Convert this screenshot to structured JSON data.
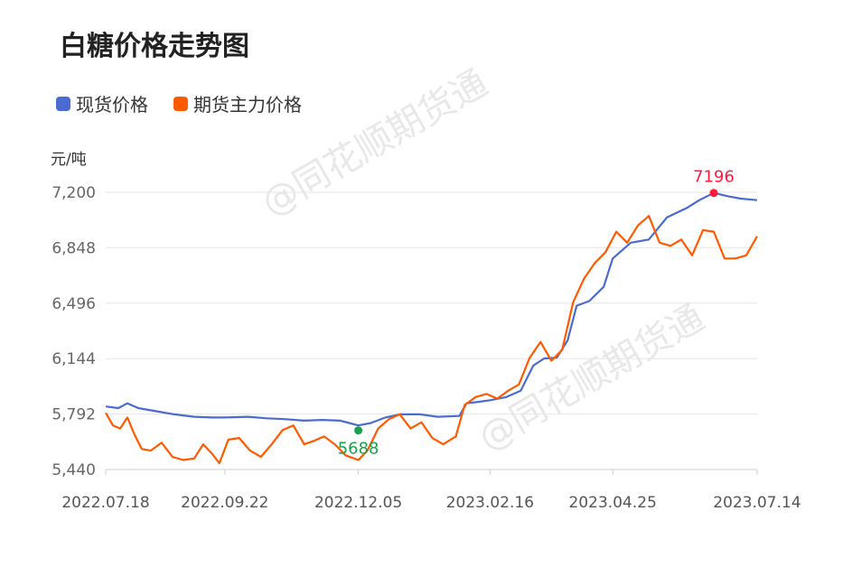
{
  "chart_data": {
    "type": "line",
    "title": "白糖价格走势图",
    "ylabel": "元/吨",
    "xlabel": "",
    "ylim": [
      5440,
      7200
    ],
    "y_ticks": [
      "7,200",
      "6,848",
      "6,496",
      "6,144",
      "5,792",
      "5,440"
    ],
    "y_tick_values": [
      7200,
      6848,
      6496,
      6144,
      5792,
      5440
    ],
    "x_ticks": [
      "2022.07.18",
      "2022.09.22",
      "2022.12.05",
      "2023.02.16",
      "2023.04.25",
      "2023.07.14"
    ],
    "x_tick_dates": [
      "2022-07-18",
      "2022-09-22",
      "2022-12-05",
      "2023-02-16",
      "2023-04-25",
      "2023-07-14"
    ],
    "grid": true,
    "legend_position": "top-left",
    "series": [
      {
        "name": "现货价格",
        "color": "#4a6bd0",
        "points": [
          [
            "2022-07-18",
            5840
          ],
          [
            "2022-07-25",
            5830
          ],
          [
            "2022-07-30",
            5860
          ],
          [
            "2022-08-05",
            5830
          ],
          [
            "2022-08-15",
            5810
          ],
          [
            "2022-08-25",
            5790
          ],
          [
            "2022-09-05",
            5775
          ],
          [
            "2022-09-15",
            5770
          ],
          [
            "2022-09-22",
            5770
          ],
          [
            "2022-10-05",
            5775
          ],
          [
            "2022-10-15",
            5765
          ],
          [
            "2022-10-25",
            5760
          ],
          [
            "2022-11-05",
            5750
          ],
          [
            "2022-11-15",
            5755
          ],
          [
            "2022-11-25",
            5750
          ],
          [
            "2022-12-05",
            5720
          ],
          [
            "2022-12-12",
            5735
          ],
          [
            "2022-12-20",
            5770
          ],
          [
            "2022-12-28",
            5790
          ],
          [
            "2023-01-08",
            5790
          ],
          [
            "2023-01-18",
            5775
          ],
          [
            "2023-01-30",
            5780
          ],
          [
            "2023-02-03",
            5860
          ],
          [
            "2023-02-10",
            5870
          ],
          [
            "2023-02-16",
            5880
          ],
          [
            "2023-02-25",
            5900
          ],
          [
            "2023-03-05",
            5940
          ],
          [
            "2023-03-12",
            6100
          ],
          [
            "2023-03-18",
            6145
          ],
          [
            "2023-03-25",
            6150
          ],
          [
            "2023-03-31",
            6260
          ],
          [
            "2023-04-05",
            6480
          ],
          [
            "2023-04-12",
            6510
          ],
          [
            "2023-04-20",
            6600
          ],
          [
            "2023-04-25",
            6780
          ],
          [
            "2023-05-05",
            6880
          ],
          [
            "2023-05-15",
            6900
          ],
          [
            "2023-05-25",
            7040
          ],
          [
            "2023-06-05",
            7100
          ],
          [
            "2023-06-12",
            7150
          ],
          [
            "2023-06-20",
            7196
          ],
          [
            "2023-06-28",
            7175
          ],
          [
            "2023-07-05",
            7160
          ],
          [
            "2023-07-14",
            7150
          ]
        ]
      },
      {
        "name": "期货主力价格",
        "color": "#ff5a00",
        "points": [
          [
            "2022-07-18",
            5800
          ],
          [
            "2022-07-22",
            5720
          ],
          [
            "2022-07-26",
            5700
          ],
          [
            "2022-07-30",
            5770
          ],
          [
            "2022-08-03",
            5660
          ],
          [
            "2022-08-07",
            5570
          ],
          [
            "2022-08-12",
            5560
          ],
          [
            "2022-08-18",
            5610
          ],
          [
            "2022-08-24",
            5520
          ],
          [
            "2022-08-30",
            5500
          ],
          [
            "2022-09-05",
            5510
          ],
          [
            "2022-09-10",
            5600
          ],
          [
            "2022-09-15",
            5540
          ],
          [
            "2022-09-19",
            5480
          ],
          [
            "2022-09-24",
            5630
          ],
          [
            "2022-09-30",
            5640
          ],
          [
            "2022-10-06",
            5560
          ],
          [
            "2022-10-12",
            5520
          ],
          [
            "2022-10-18",
            5600
          ],
          [
            "2022-10-24",
            5690
          ],
          [
            "2022-10-30",
            5720
          ],
          [
            "2022-11-05",
            5600
          ],
          [
            "2022-11-10",
            5620
          ],
          [
            "2022-11-16",
            5650
          ],
          [
            "2022-11-22",
            5600
          ],
          [
            "2022-11-28",
            5530
          ],
          [
            "2022-12-05",
            5500
          ],
          [
            "2022-12-10",
            5560
          ],
          [
            "2022-12-16",
            5700
          ],
          [
            "2022-12-22",
            5760
          ],
          [
            "2022-12-28",
            5790
          ],
          [
            "2023-01-03",
            5700
          ],
          [
            "2023-01-09",
            5740
          ],
          [
            "2023-01-15",
            5640
          ],
          [
            "2023-01-21",
            5600
          ],
          [
            "2023-01-28",
            5650
          ],
          [
            "2023-02-02",
            5850
          ],
          [
            "2023-02-08",
            5900
          ],
          [
            "2023-02-14",
            5920
          ],
          [
            "2023-02-20",
            5890
          ],
          [
            "2023-02-26",
            5940
          ],
          [
            "2023-03-04",
            5980
          ],
          [
            "2023-03-10",
            6150
          ],
          [
            "2023-03-16",
            6250
          ],
          [
            "2023-03-22",
            6130
          ],
          [
            "2023-03-28",
            6200
          ],
          [
            "2023-04-03",
            6500
          ],
          [
            "2023-04-09",
            6650
          ],
          [
            "2023-04-15",
            6750
          ],
          [
            "2023-04-21",
            6820
          ],
          [
            "2023-04-27",
            6950
          ],
          [
            "2023-05-03",
            6880
          ],
          [
            "2023-05-09",
            6990
          ],
          [
            "2023-05-15",
            7050
          ],
          [
            "2023-05-21",
            6880
          ],
          [
            "2023-05-27",
            6860
          ],
          [
            "2023-06-02",
            6900
          ],
          [
            "2023-06-08",
            6800
          ],
          [
            "2023-06-14",
            6960
          ],
          [
            "2023-06-20",
            6950
          ],
          [
            "2023-06-26",
            6780
          ],
          [
            "2023-07-02",
            6780
          ],
          [
            "2023-07-08",
            6800
          ],
          [
            "2023-07-14",
            6920
          ]
        ]
      }
    ],
    "annotations": [
      {
        "text": "7196",
        "date": "2023-06-20",
        "value": 7196,
        "color": "#ff1a3c"
      },
      {
        "text": "5688",
        "date": "2022-12-05",
        "value": 5688,
        "color": "#17a34a"
      }
    ],
    "watermark": "@同花顺期货通"
  }
}
